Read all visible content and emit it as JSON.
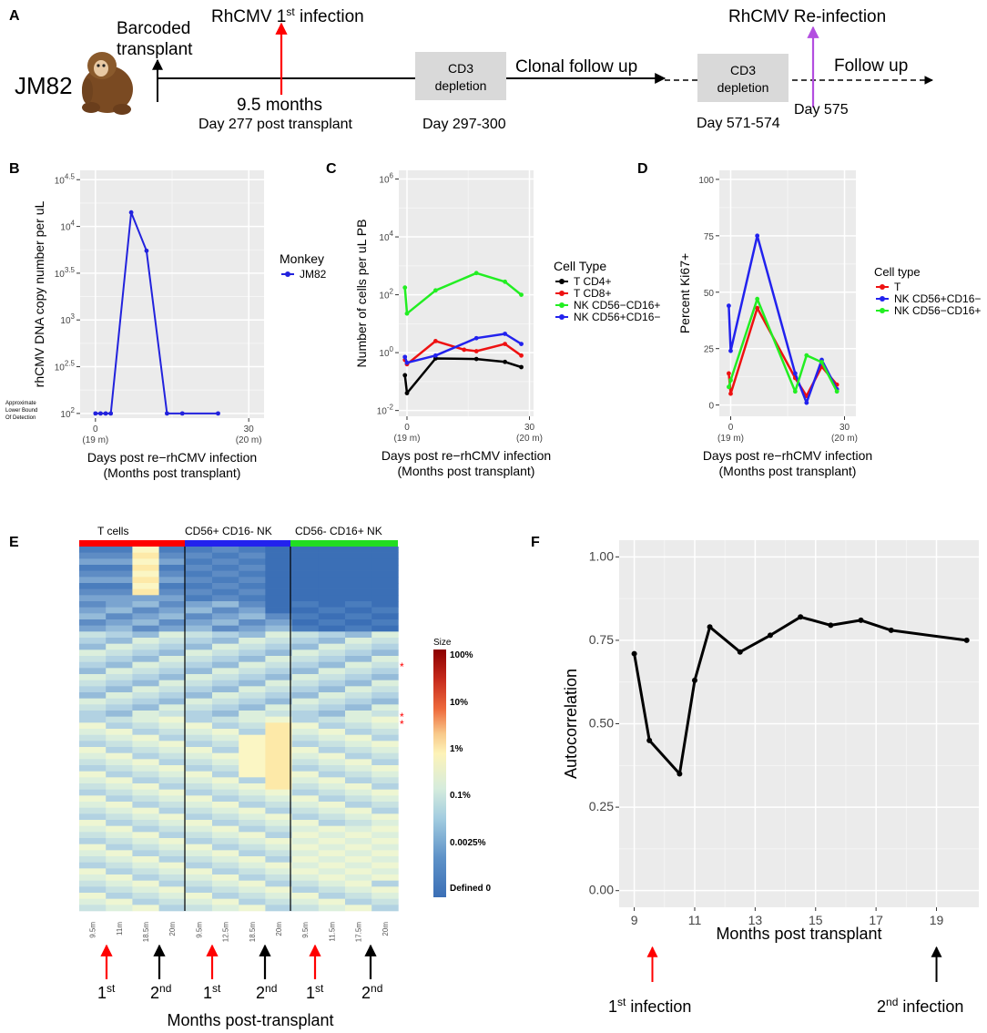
{
  "panel_letters": {
    "a": "A",
    "b": "B",
    "c": "C",
    "d": "D",
    "e": "E",
    "f": "F"
  },
  "timeline": {
    "monkey": "JM82",
    "barcoded_line1": "Barcoded",
    "barcoded_line2": "transplant",
    "infection1_title": "RhCMV 1",
    "infection1_sup": "st",
    "infection1_tail": "  infection",
    "months_label": "9.5 months",
    "day277_label": "Day 277 post transplant",
    "cd3_line1": "CD3",
    "cd3_line2": "depletion",
    "clonal_follow_up": "Clonal follow up",
    "day_297": "Day 297-300",
    "reinfection_title": "RhCMV Re-infection",
    "follow_up": "Follow up",
    "day_571": "Day 571-574",
    "day_575": "Day 575",
    "colors": {
      "infection1": "#ff0000",
      "reinfection": "#b34ee0"
    }
  },
  "lod_annotation": [
    "Approximate",
    "Lower Bound",
    "Of Detection"
  ],
  "heatmap": {
    "groups": [
      {
        "label": "T cells",
        "color": "#ff0000"
      },
      {
        "label": "CD56+ CD16- NK",
        "color": "#2222ee"
      },
      {
        "label": "CD56- CD16+ NK",
        "color": "#22dd22"
      }
    ],
    "col_labels": [
      "9.5m",
      "11m",
      "18.5m",
      "20m",
      "9.5m",
      "12.5m",
      "18.5m",
      "20m",
      "9.5m",
      "11.5m",
      "17.5m",
      "20m"
    ],
    "arrows": [
      {
        "color": "red",
        "text": "1",
        "sup": "st"
      },
      {
        "color": "black",
        "text": "2",
        "sup": "nd"
      },
      {
        "color": "red",
        "text": "1",
        "sup": "st"
      },
      {
        "color": "black",
        "text": "2",
        "sup": "nd"
      },
      {
        "color": "red",
        "text": "1",
        "sup": "st"
      },
      {
        "color": "black",
        "text": "2",
        "sup": "nd"
      }
    ],
    "xlabel": "Months post-transplant",
    "legend_title": "Size",
    "legend_labels": [
      "100%",
      "10%",
      "1%",
      "0.1%",
      "0.0025%",
      "Defined 0"
    ],
    "stars": [
      "*",
      "*",
      "*"
    ]
  },
  "chart_data": [
    {
      "panel": "B",
      "type": "line",
      "xlabel": "Days post re−rhCMV infection",
      "xlabel2": "(Months post transplant)",
      "ylabel": "rhCMV DNA copy number per uL",
      "xlim": [
        -3,
        33
      ],
      "ylim_log10": [
        1.95,
        4.6
      ],
      "xticks": [
        0,
        30
      ],
      "xtick_labels": [
        "0",
        "30"
      ],
      "xtick_sub": [
        "(19 m)",
        "(20 m)"
      ],
      "yticks_log10": [
        2,
        2.5,
        3,
        3.5,
        4,
        4.5
      ],
      "ytick_base": "10",
      "ytick_exp": [
        "2",
        "2.5",
        "3",
        "3.5",
        "4",
        "4.5"
      ],
      "legend_title": "Monkey",
      "series": [
        {
          "name": "JM82",
          "color": "#2222dd",
          "x": [
            0,
            1,
            2,
            3,
            7,
            10,
            14,
            17,
            24
          ],
          "log10y": [
            2,
            2,
            2,
            2,
            4.15,
            3.74,
            2,
            2,
            2
          ]
        }
      ]
    },
    {
      "panel": "C",
      "type": "line",
      "xlabel": "Days post re−rhCMV infection",
      "xlabel2": "(Months post transplant)",
      "ylabel": "Number of cells per uL PB",
      "xlim": [
        -2,
        31
      ],
      "ylim_log10": [
        -2.2,
        6.3
      ],
      "xticks": [
        0,
        30
      ],
      "xtick_labels": [
        "0",
        "30"
      ],
      "xtick_sub": [
        "(19 m)",
        "(20 m)"
      ],
      "yticks_log10": [
        -2,
        0,
        2,
        4,
        6
      ],
      "ytick_base": "10",
      "ytick_exp": [
        "-2",
        "0",
        "2",
        "4",
        "6"
      ],
      "legend_title": "Cell Type",
      "series": [
        {
          "name": "T CD4+",
          "color": "#000000",
          "x": [
            -0.5,
            0,
            7,
            17,
            24,
            28
          ],
          "log10y": [
            -0.78,
            -1.4,
            -0.2,
            -0.22,
            -0.32,
            -0.5
          ]
        },
        {
          "name": "T CD8+",
          "color": "#ee1111",
          "x": [
            -0.5,
            0,
            7,
            14,
            17,
            24,
            28
          ],
          "log10y": [
            -0.25,
            -0.4,
            0.4,
            0.1,
            0.05,
            0.3,
            -0.1
          ]
        },
        {
          "name": "NK CD56−CD16+",
          "color": "#22ee22",
          "x": [
            -0.5,
            0,
            7,
            17,
            24,
            28
          ],
          "log10y": [
            2.25,
            1.35,
            2.15,
            2.75,
            2.45,
            2.0
          ]
        },
        {
          "name": "NK CD56+CD16−",
          "color": "#2222ee",
          "x": [
            -0.5,
            0,
            7,
            17,
            24,
            28
          ],
          "log10y": [
            -0.15,
            -0.35,
            -0.1,
            0.5,
            0.65,
            0.3
          ]
        }
      ]
    },
    {
      "panel": "D",
      "type": "line",
      "xlabel": "Days post re−rhCMV infection",
      "xlabel2": "(Months post transplant)",
      "ylabel": "Percent Ki67+",
      "xlim": [
        -3,
        33
      ],
      "ylim": [
        -5,
        104
      ],
      "xticks": [
        0,
        30
      ],
      "xtick_labels": [
        "0",
        "30"
      ],
      "xtick_sub": [
        "(19 m)",
        "(20 m)"
      ],
      "yticks": [
        0,
        25,
        50,
        75,
        100
      ],
      "legend_title": "Cell type",
      "series": [
        {
          "name": "T",
          "color": "#ee1111",
          "x": [
            -0.5,
            0,
            7,
            17,
            20,
            24,
            28
          ],
          "log10y": null,
          "y": [
            14,
            5,
            43,
            12,
            4,
            17,
            9
          ]
        },
        {
          "name": "NK CD56+CD16−",
          "color": "#2222ee",
          "x": [
            -0.5,
            0,
            7,
            17,
            20,
            24,
            28
          ],
          "y": [
            44,
            24,
            75,
            14,
            1,
            20,
            7
          ]
        },
        {
          "name": "NK CD56−CD16+",
          "color": "#22ee22",
          "x": [
            -0.5,
            0,
            7,
            17,
            20,
            24,
            28
          ],
          "y": [
            8,
            11,
            47,
            6,
            22,
            19,
            6
          ]
        }
      ]
    },
    {
      "panel": "F",
      "type": "line",
      "xlabel": "Months post transplant",
      "ylabel": "Autocorrelation",
      "xlim": [
        8.5,
        20.4
      ],
      "ylim": [
        -0.05,
        1.05
      ],
      "xticks": [
        9,
        11,
        13,
        15,
        17,
        19
      ],
      "xtick_labels": [
        "9",
        "11",
        "13",
        "15",
        "17",
        "19"
      ],
      "yticks": [
        0,
        0.25,
        0.5,
        0.75,
        1.0
      ],
      "ytick_labels": [
        "0.00",
        "0.25",
        "0.50",
        "0.75",
        "1.00"
      ],
      "series": [
        {
          "name": "Autocorrelation",
          "color": "#000000",
          "x": [
            9,
            9.5,
            10.5,
            11,
            11.5,
            12.5,
            13.5,
            14.5,
            15.5,
            16.5,
            17.5,
            20
          ],
          "y": [
            0.71,
            0.45,
            0.35,
            0.63,
            0.79,
            0.715,
            0.765,
            0.82,
            0.795,
            0.81,
            0.78,
            0.75
          ]
        }
      ],
      "annotations": [
        {
          "text": "1",
          "sup": "st",
          "tail": " infection",
          "at_x": 9.6,
          "color": "#ff0000"
        },
        {
          "text": "2",
          "sup": "nd",
          "tail": "  infection",
          "at_x": 19,
          "color": "#000000"
        }
      ]
    }
  ]
}
